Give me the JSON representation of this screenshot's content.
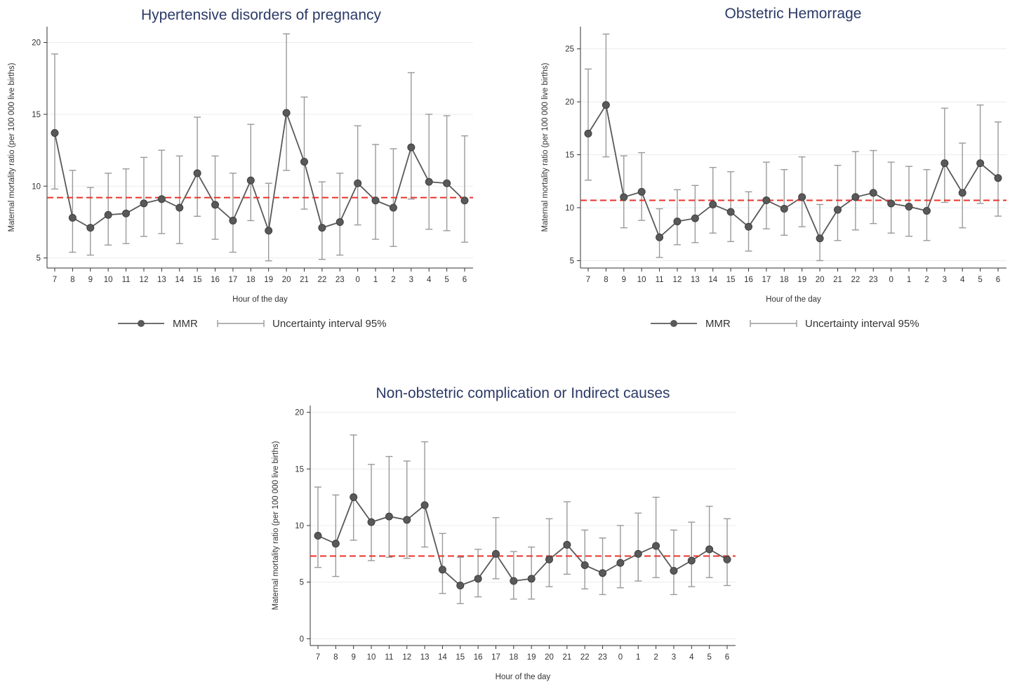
{
  "legend": {
    "mmr_label": "MMR",
    "ci_label": "Uncertainty interval 95%"
  },
  "colors": {
    "line": "#595959",
    "marker": "#595959",
    "ci": "#9a9a9a",
    "reference": "#e8332a",
    "grid": "#e9ecef",
    "title": "#2b3a67"
  },
  "chart_data": [
    {
      "type": "line",
      "title": "Hypertensive disorders of pregnancy",
      "xlabel": "Hour of the day",
      "ylabel": "Maternal mortality ratio (per 100 000 live births)",
      "categories": [
        "7",
        "8",
        "9",
        "10",
        "11",
        "12",
        "13",
        "14",
        "15",
        "16",
        "17",
        "18",
        "19",
        "20",
        "21",
        "22",
        "23",
        "0",
        "1",
        "2",
        "3",
        "4",
        "5",
        "6"
      ],
      "yticks": [
        5,
        10,
        15,
        20
      ],
      "ylim": [
        4.3,
        21.1
      ],
      "reference_line": 9.2,
      "grid": true,
      "legend_position": "bottom",
      "series": [
        {
          "name": "MMR",
          "values": [
            13.7,
            7.8,
            7.1,
            8.0,
            8.1,
            8.8,
            9.1,
            8.5,
            10.9,
            8.7,
            7.6,
            10.4,
            6.9,
            15.1,
            11.7,
            7.1,
            7.5,
            10.2,
            9.0,
            8.5,
            12.7,
            10.3,
            10.2,
            9.0
          ]
        },
        {
          "name": "Uncertainty interval 95%",
          "lower": [
            9.8,
            5.4,
            5.2,
            5.9,
            6.0,
            6.5,
            6.7,
            6.0,
            7.9,
            6.3,
            5.4,
            7.6,
            4.8,
            11.1,
            8.4,
            4.9,
            5.2,
            7.3,
            6.3,
            5.8,
            9.1,
            7.0,
            6.9,
            6.1
          ],
          "upper": [
            19.2,
            11.1,
            9.9,
            10.9,
            11.2,
            12.0,
            12.5,
            12.1,
            14.8,
            12.1,
            10.9,
            14.3,
            10.2,
            20.6,
            16.2,
            10.3,
            10.9,
            14.2,
            12.9,
            12.6,
            17.9,
            15.0,
            14.9,
            13.5
          ]
        }
      ]
    },
    {
      "type": "line",
      "title": "Obstetric Hemorrage",
      "xlabel": "Hour of the day",
      "ylabel": "Maternal mortality ratio (per 100 000 live births)",
      "categories": [
        "7",
        "8",
        "9",
        "10",
        "11",
        "12",
        "13",
        "14",
        "15",
        "16",
        "17",
        "18",
        "19",
        "20",
        "21",
        "22",
        "23",
        "0",
        "1",
        "2",
        "3",
        "4",
        "5",
        "6"
      ],
      "yticks": [
        5,
        10,
        15,
        20,
        25
      ],
      "ylim": [
        4.3,
        27.1
      ],
      "reference_line": 10.7,
      "grid": true,
      "legend_position": "bottom",
      "series": [
        {
          "name": "MMR",
          "values": [
            17.0,
            19.7,
            11.0,
            11.5,
            7.2,
            8.7,
            9.0,
            10.3,
            9.6,
            8.2,
            10.7,
            9.9,
            11.0,
            7.1,
            9.8,
            11.0,
            11.4,
            10.4,
            10.1,
            9.7,
            14.2,
            11.4,
            14.2,
            12.8
          ]
        },
        {
          "name": "Uncertainty interval 95%",
          "lower": [
            12.6,
            14.8,
            8.1,
            8.8,
            5.3,
            6.5,
            6.7,
            7.6,
            6.8,
            5.9,
            8.0,
            7.4,
            8.2,
            5.0,
            6.9,
            7.9,
            8.5,
            7.6,
            7.3,
            6.9,
            10.5,
            8.1,
            10.4,
            9.2
          ],
          "upper": [
            23.1,
            26.4,
            14.9,
            15.2,
            9.9,
            11.7,
            12.1,
            13.8,
            13.4,
            11.5,
            14.3,
            13.6,
            14.8,
            10.3,
            14.0,
            15.3,
            15.4,
            14.3,
            13.9,
            13.6,
            19.4,
            16.1,
            19.7,
            18.1
          ]
        }
      ]
    },
    {
      "type": "line",
      "title": "Non-obstetric complication or Indirect causes",
      "xlabel": "Hour of the day",
      "ylabel": "Maternal mortality ratio (per 100 000 live births)",
      "categories": [
        "7",
        "8",
        "9",
        "10",
        "11",
        "12",
        "13",
        "14",
        "15",
        "16",
        "17",
        "18",
        "19",
        "20",
        "21",
        "22",
        "23",
        "0",
        "1",
        "2",
        "3",
        "4",
        "5",
        "6"
      ],
      "yticks": [
        0,
        5,
        10,
        15,
        20
      ],
      "ylim": [
        -0.6,
        20.6
      ],
      "reference_line": 7.3,
      "grid": true,
      "series": [
        {
          "name": "MMR",
          "values": [
            9.1,
            8.4,
            12.5,
            10.3,
            10.8,
            10.5,
            11.8,
            6.1,
            4.7,
            5.3,
            7.5,
            5.1,
            5.3,
            7.0,
            8.3,
            6.5,
            5.8,
            6.7,
            7.5,
            8.2,
            6.0,
            6.9,
            7.9,
            7.0
          ]
        },
        {
          "name": "Uncertainty interval 95%",
          "lower": [
            6.3,
            5.5,
            8.7,
            6.9,
            7.2,
            7.1,
            8.1,
            4.0,
            3.1,
            3.7,
            5.3,
            3.5,
            3.5,
            4.6,
            5.7,
            4.4,
            3.9,
            4.5,
            5.1,
            5.4,
            3.9,
            4.6,
            5.4,
            4.7
          ],
          "upper": [
            13.4,
            12.7,
            18.0,
            15.4,
            16.1,
            15.7,
            17.4,
            9.3,
            7.2,
            7.9,
            10.7,
            7.7,
            8.1,
            10.6,
            12.1,
            9.6,
            8.9,
            10.0,
            11.1,
            12.5,
            9.6,
            10.3,
            11.7,
            10.6
          ]
        }
      ]
    }
  ]
}
